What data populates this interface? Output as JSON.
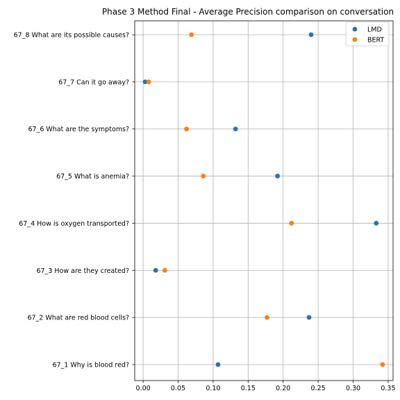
{
  "chart_data": {
    "type": "scatter",
    "title": "Phase 3 Method Final - Average Precision comparison on conversation",
    "xlabel": "",
    "ylabel": "",
    "xlim": [
      -0.012,
      0.357
    ],
    "xticks": [
      0.0,
      0.05,
      0.1,
      0.15,
      0.2,
      0.25,
      0.3,
      0.35
    ],
    "xtick_labels": [
      "0.00",
      "0.05",
      "0.10",
      "0.15",
      "0.20",
      "0.25",
      "0.30",
      "0.35"
    ],
    "categories": [
      "67_1 Why is blood red?",
      "67_2 What are red blood cells?",
      "67_3 How are they created?",
      "67_4 How is oxygen transported?",
      "67_5 What is anemia?",
      "67_6 What are the symptoms?",
      "67_7 Can it go away?",
      "67_8 What are its possible causes?"
    ],
    "series": [
      {
        "name": "LMD",
        "color": "#1f77b4",
        "values": [
          0.107,
          0.237,
          0.018,
          0.333,
          0.192,
          0.132,
          0.003,
          0.24
        ]
      },
      {
        "name": "BERT",
        "color": "#ff7f0e",
        "values": [
          0.342,
          0.177,
          0.031,
          0.212,
          0.086,
          0.062,
          0.008,
          0.069
        ]
      }
    ],
    "grid": true,
    "legend": "top-right"
  }
}
